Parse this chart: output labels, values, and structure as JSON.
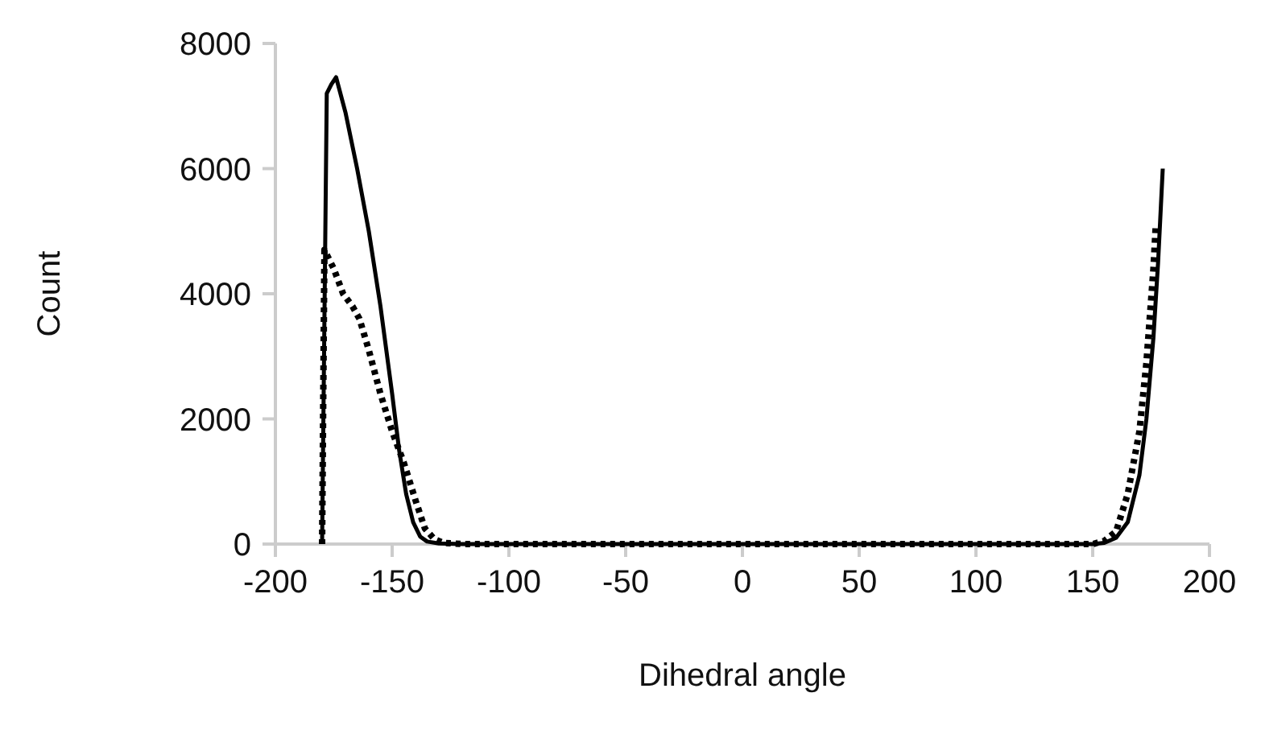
{
  "chart_data": {
    "type": "line",
    "xlabel": "Dihedral angle",
    "ylabel": "Count",
    "xlim": [
      -200,
      200
    ],
    "ylim": [
      0,
      8000
    ],
    "xticks": [
      -200,
      -150,
      -100,
      -50,
      0,
      50,
      100,
      150,
      200
    ],
    "yticks": [
      0,
      2000,
      4000,
      6000,
      8000
    ],
    "grid": false,
    "series": [
      {
        "color": "#000000",
        "line_style": "solid",
        "x": [
          -180,
          -178,
          -176,
          -174,
          -170,
          -165,
          -160,
          -155,
          -150,
          -147,
          -144,
          -141,
          -138,
          -135,
          -130,
          -120,
          -100,
          -50,
          0,
          50,
          100,
          150,
          155,
          160,
          165,
          170,
          173,
          176,
          178,
          180
        ],
        "values": [
          0,
          7200,
          7350,
          7460,
          6900,
          6000,
          5000,
          3800,
          2400,
          1500,
          800,
          350,
          120,
          40,
          10,
          0,
          0,
          0,
          0,
          0,
          0,
          0,
          20,
          100,
          350,
          1100,
          2000,
          3300,
          4500,
          6000
        ]
      },
      {
        "color": "#000000",
        "line_style": "dotted",
        "x": [
          -180,
          -179,
          -177,
          -175,
          -171,
          -167,
          -164,
          -160,
          -155,
          -150,
          -145,
          -140,
          -136,
          -132,
          -128,
          -120,
          -100,
          -50,
          0,
          50,
          100,
          150,
          155,
          160,
          165,
          170,
          173,
          176,
          177
        ],
        "values": [
          0,
          4700,
          4550,
          4400,
          4000,
          3800,
          3600,
          3100,
          2400,
          1800,
          1300,
          700,
          250,
          80,
          20,
          0,
          0,
          0,
          0,
          0,
          0,
          0,
          50,
          200,
          800,
          1800,
          2900,
          4400,
          5100
        ]
      }
    ]
  }
}
